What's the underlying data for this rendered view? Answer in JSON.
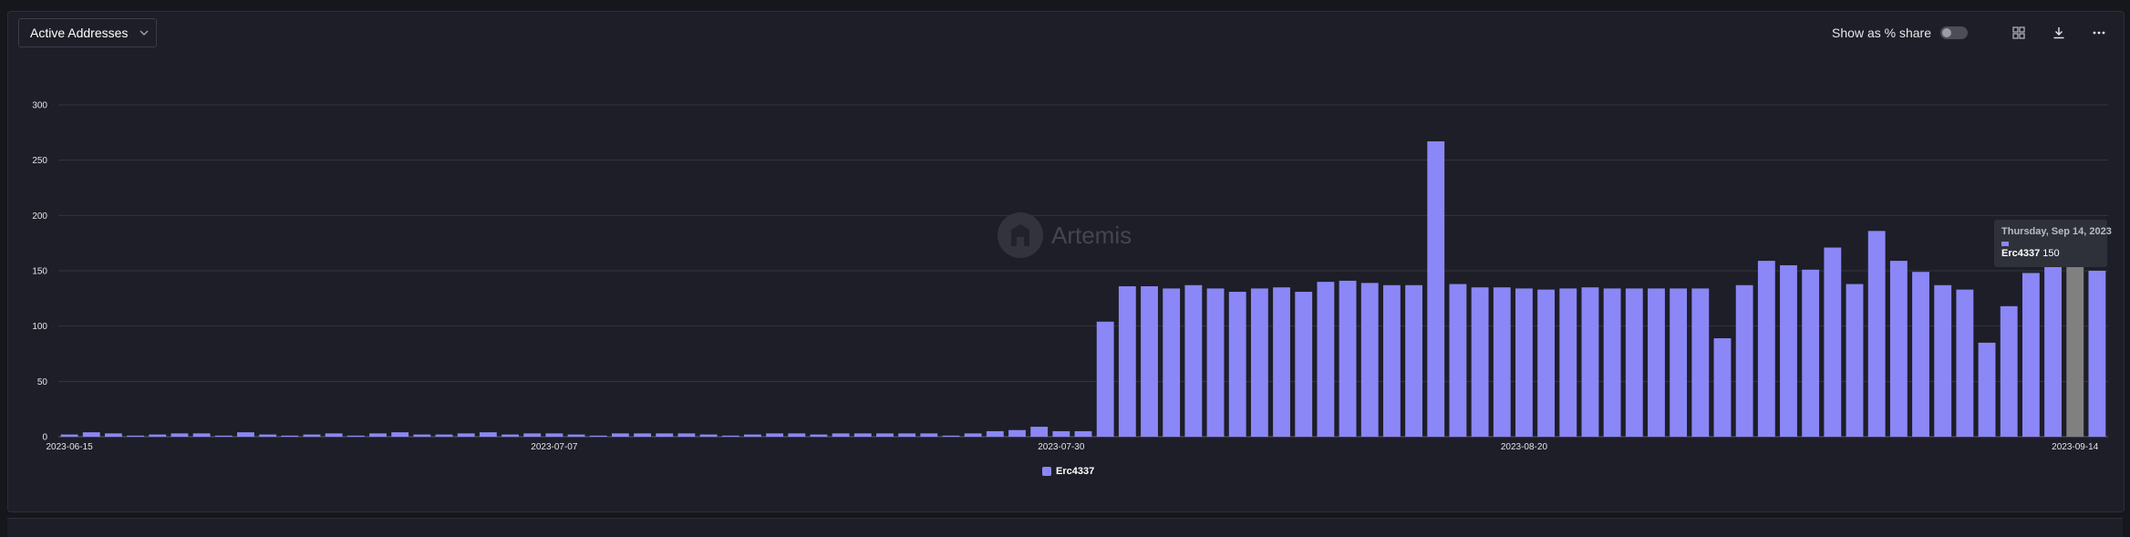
{
  "header": {
    "metric_label": "Active Addresses",
    "share_toggle_label": "Show as % share",
    "share_toggle_on": false
  },
  "watermark": {
    "text": "Artemis"
  },
  "tooltip": {
    "date": "Thursday, Sep 14, 2023",
    "series": "Erc4337",
    "value": "150"
  },
  "colors": {
    "bar": "#8b87f6",
    "highlighted_bar": "#808080",
    "grid": "#33353f"
  },
  "chart_data": {
    "type": "bar",
    "x_start": "2023-06-15",
    "x_end": "2023-09-14",
    "x_tick_labels": [
      "2023-06-15",
      "2023-07-07",
      "2023-07-30",
      "2023-08-20",
      "2023-09-14"
    ],
    "ylim": [
      0,
      300
    ],
    "y_ticks": [
      0,
      50,
      100,
      150,
      200,
      250,
      300
    ],
    "grid": true,
    "legend_position": "bottom-center",
    "highlighted_date": "2023-09-14",
    "series": [
      {
        "name": "Erc4337",
        "values": [
          2,
          4,
          3,
          1,
          2,
          3,
          3,
          1,
          4,
          2,
          1,
          2,
          3,
          1,
          3,
          4,
          2,
          2,
          3,
          4,
          2,
          3,
          3,
          2,
          1,
          3,
          3,
          3,
          3,
          2,
          1,
          2,
          3,
          3,
          2,
          3,
          3,
          3,
          3,
          3,
          1,
          3,
          5,
          6,
          9,
          5,
          5,
          104,
          136,
          136,
          134,
          137,
          134,
          131,
          134,
          135,
          131,
          140,
          141,
          139,
          137,
          137,
          267,
          138,
          135,
          135,
          134,
          133,
          134,
          135,
          134,
          134,
          134,
          134,
          134,
          89,
          137,
          159,
          155,
          151,
          171,
          138,
          186,
          159,
          149,
          137,
          133,
          85,
          118,
          148,
          155,
          155,
          150
        ]
      }
    ]
  }
}
